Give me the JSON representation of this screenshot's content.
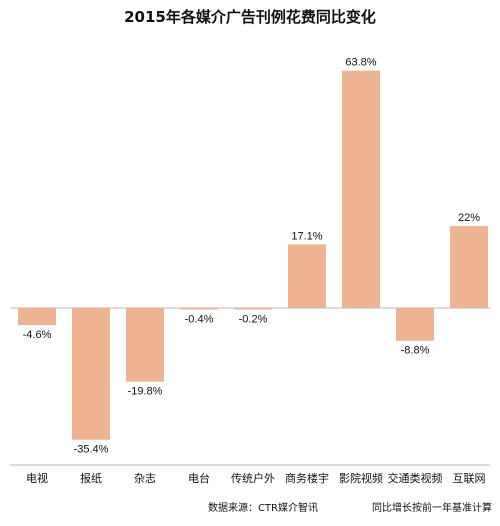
{
  "chart_data": {
    "type": "bar",
    "title": "2015年各媒介广告刊例花费同比变化",
    "categories": [
      "电视",
      "报纸",
      "杂志",
      "电台",
      "传统户外",
      "商务楼宇",
      "影院视频",
      "交通类视频",
      "互联网"
    ],
    "values": [
      -4.6,
      -35.4,
      -19.8,
      -0.4,
      -0.2,
      17.1,
      63.8,
      -8.8,
      22
    ],
    "value_labels": [
      "-4.6%",
      "-35.4%",
      "-19.8%",
      "-0.4%",
      "-0.2%",
      "17.1%",
      "63.8%",
      "-8.8%",
      "22%"
    ],
    "xlabel": "",
    "ylabel": "",
    "ylim": [
      -40,
      70
    ],
    "grid": false,
    "legend": "none",
    "bar_color": "#eeb390",
    "axis_color": "#b9b9b9",
    "footer_source": "数据来源：CTR媒介智讯",
    "footer_note": "同比增长按前一年基准计算"
  }
}
